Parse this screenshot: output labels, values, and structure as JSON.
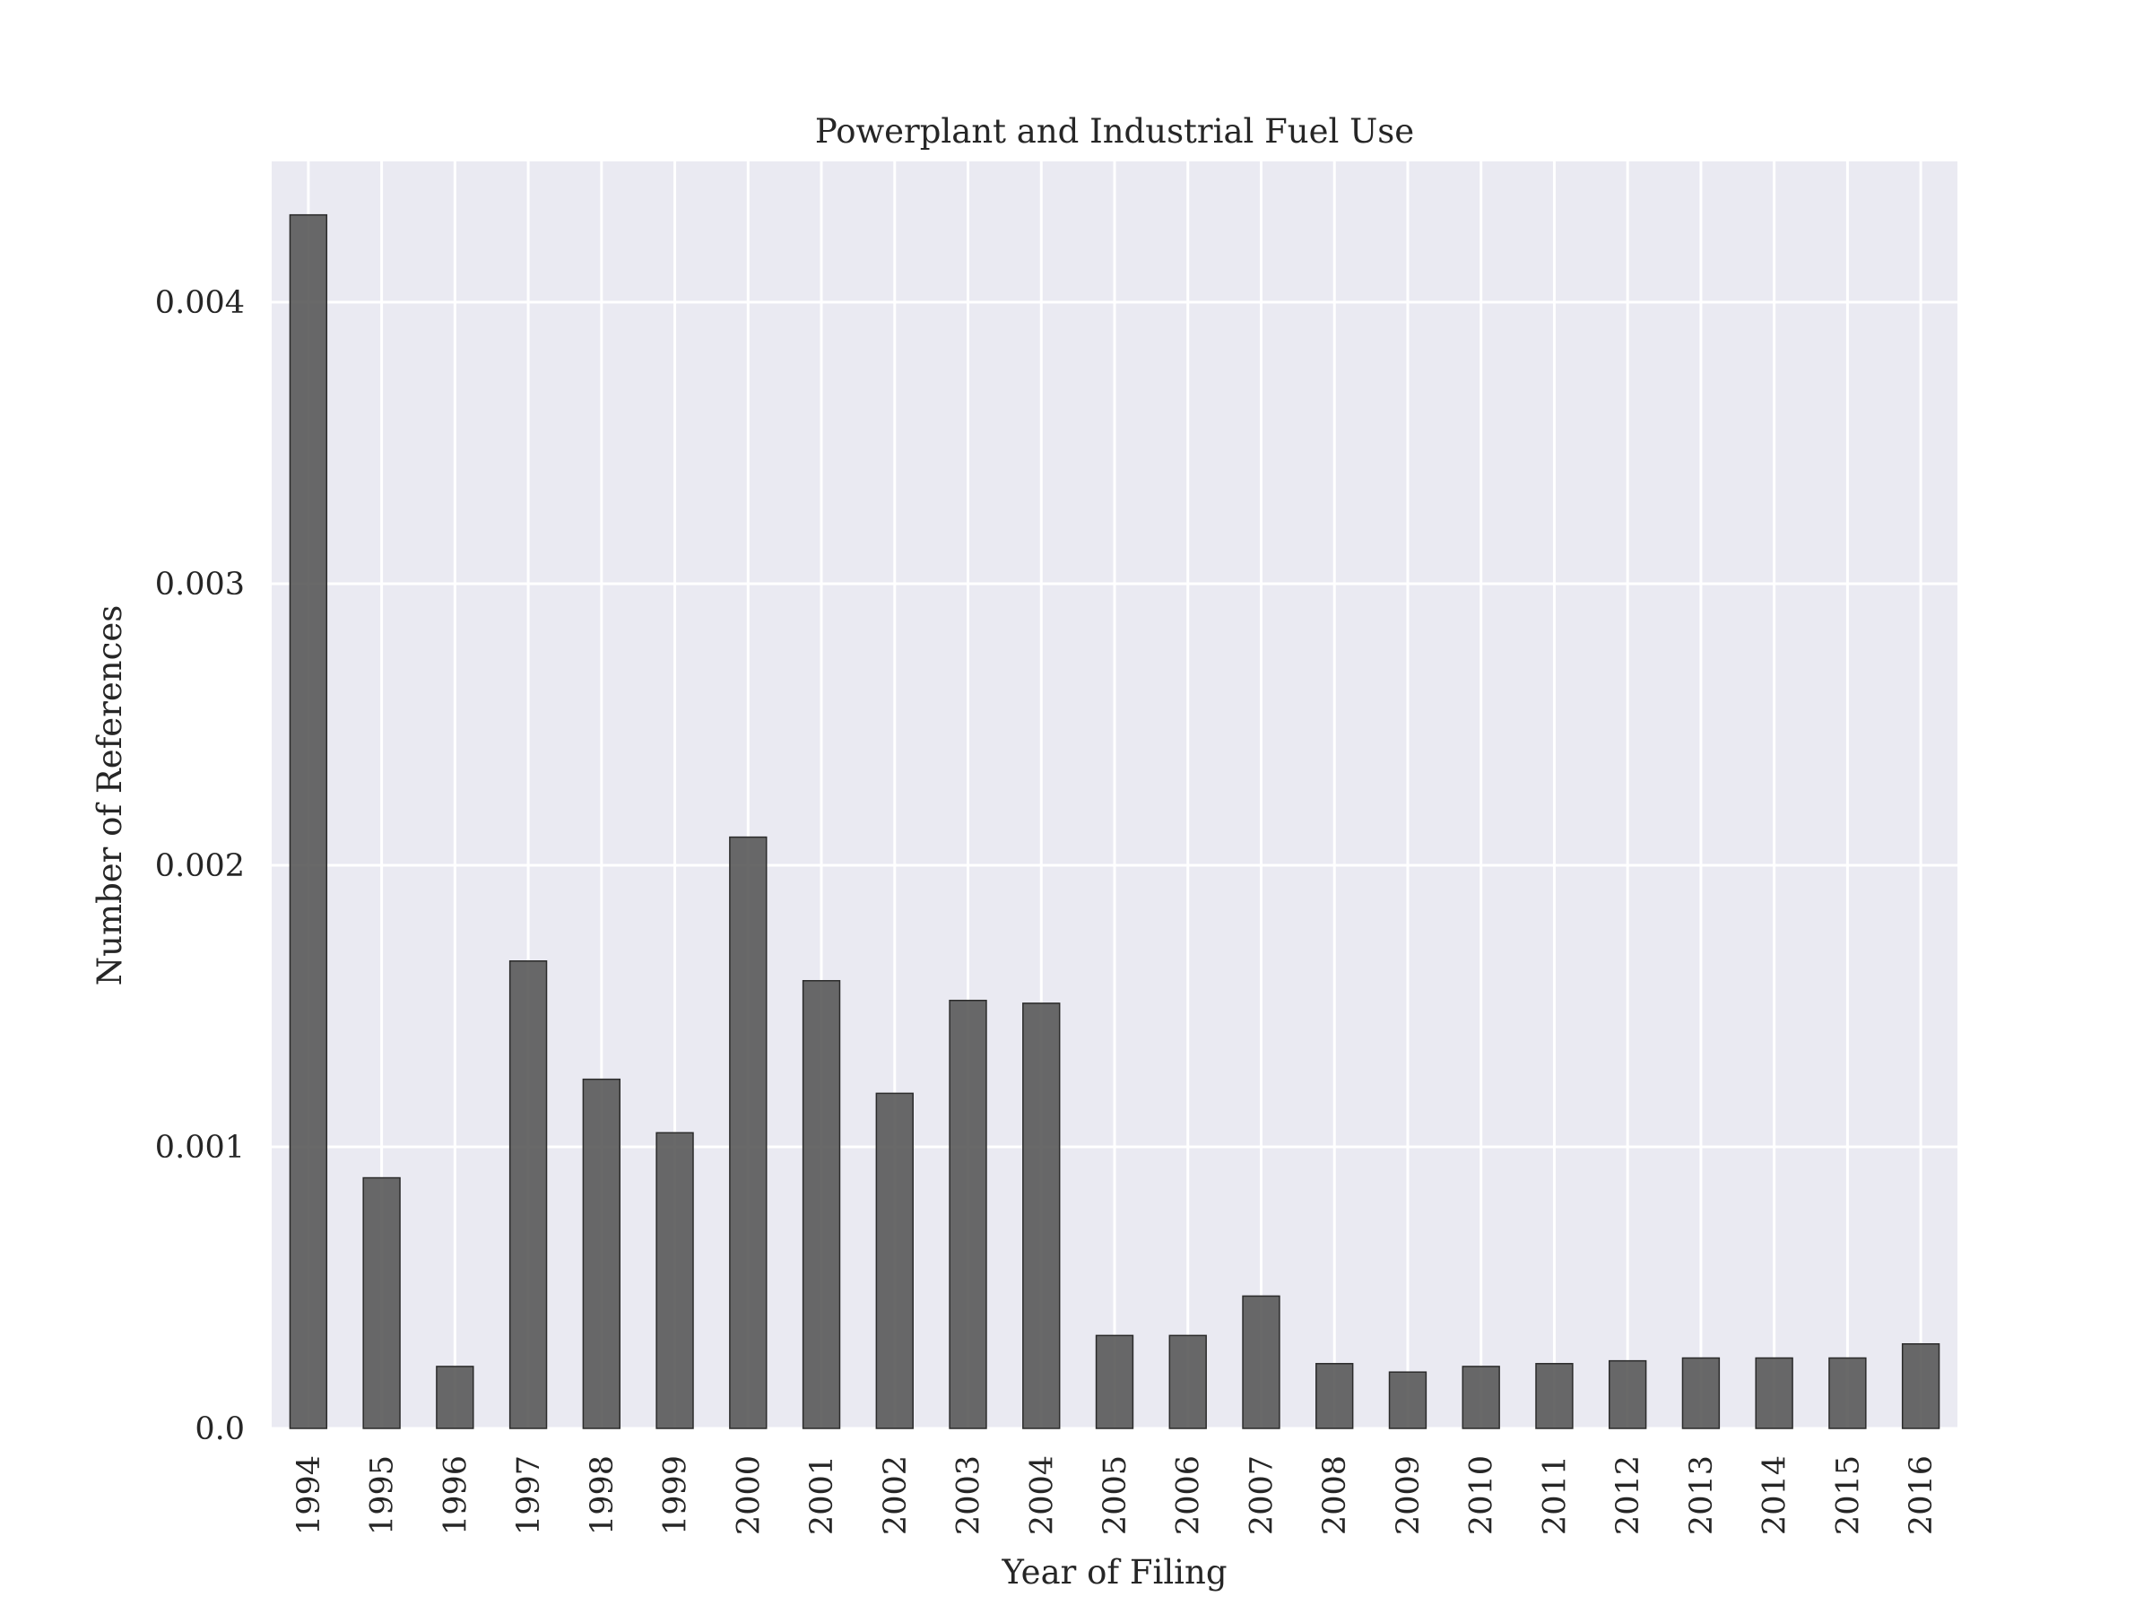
{
  "chart_data": {
    "type": "bar",
    "title": "Powerplant and Industrial Fuel Use",
    "xlabel": "Year of Filing",
    "ylabel": "Number of References",
    "categories": [
      "1994",
      "1995",
      "1996",
      "1997",
      "1998",
      "1999",
      "2000",
      "2001",
      "2002",
      "2003",
      "2004",
      "2005",
      "2006",
      "2007",
      "2008",
      "2009",
      "2010",
      "2011",
      "2012",
      "2013",
      "2014",
      "2015",
      "2016"
    ],
    "values": [
      0.00431,
      0.00089,
      0.00022,
      0.00166,
      0.00124,
      0.00105,
      0.0021,
      0.00159,
      0.00119,
      0.00152,
      0.00151,
      0.00033,
      0.00033,
      0.00047,
      0.00023,
      0.0002,
      0.00022,
      0.00023,
      0.00024,
      0.00025,
      0.00025,
      0.00025,
      0.0003
    ],
    "yticks": [
      0.0,
      0.001,
      0.002,
      0.003,
      0.004
    ],
    "ytick_labels": [
      "0.0",
      "0.001",
      "0.002",
      "0.003",
      "0.004"
    ],
    "ylim": [
      0,
      0.0045
    ],
    "grid": true,
    "colors": {
      "plot_background": "#eaeaf2",
      "grid": "#ffffff",
      "bar_fill": "#595959",
      "bar_edge": "#2b2b2b",
      "text": "#262626"
    }
  }
}
